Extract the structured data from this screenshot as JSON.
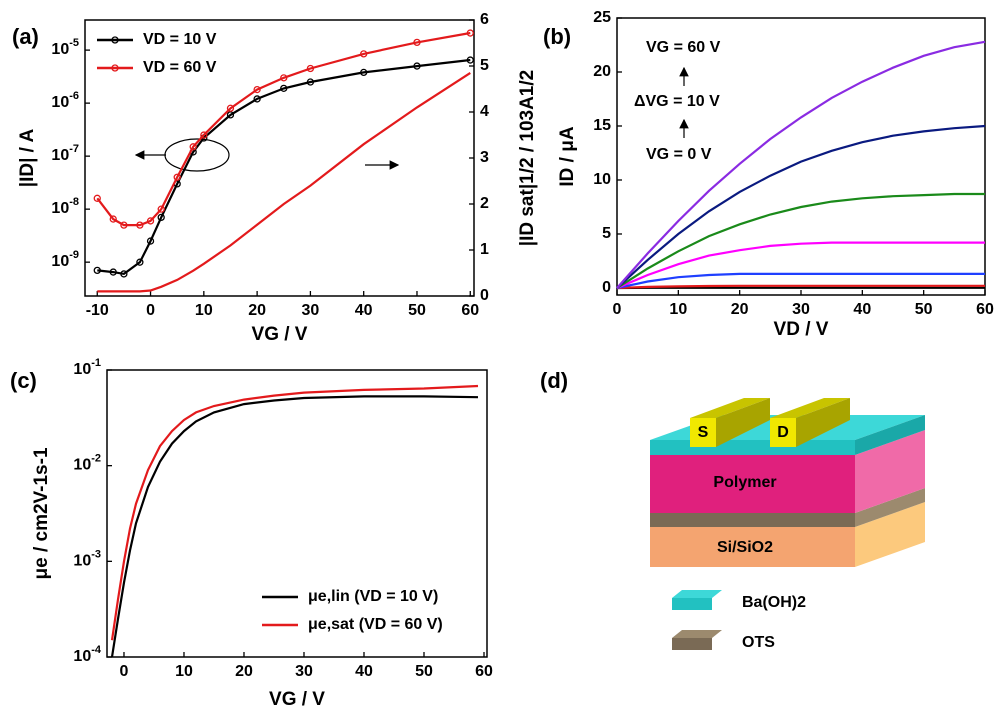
{
  "chart_data": [
    {
      "type": "line",
      "panel_label": "(a)",
      "xlabel": "VG / V",
      "ylabel": "|ID| / A",
      "y2label": "|ID sat|1/2 / 103A1/2",
      "ylog": true,
      "markers": true,
      "legend": "upper left",
      "xlim": [
        -12.3,
        60.7
      ],
      "xticks": [
        -10,
        0,
        10,
        20,
        30,
        40,
        50,
        60
      ],
      "ylim": [
        2.3e-10,
        3.7e-05
      ],
      "yticks": [
        {
          "value": 1e-09,
          "label": "10-9"
        },
        {
          "value": 1e-08,
          "label": "10-8"
        },
        {
          "value": 1e-07,
          "label": "10-7"
        },
        {
          "value": 1e-06,
          "label": "10-6"
        },
        {
          "value": 1e-05,
          "label": "10-5"
        }
      ],
      "y2lim": [
        0,
        6
      ],
      "y2ticks": [
        0,
        1,
        2,
        3,
        4,
        5,
        6
      ],
      "x": [
        -10,
        -7,
        -5,
        -2,
        0,
        2,
        5,
        8,
        10,
        15,
        20,
        25,
        30,
        40,
        50,
        60
      ],
      "series": [
        {
          "name": "VD = 10 V",
          "color": "#000000",
          "values": [
            7e-10,
            6.5e-10,
            6e-10,
            1e-09,
            2.5e-09,
            7e-09,
            3e-08,
            1.2e-07,
            2.2e-07,
            6e-07,
            1.2e-06,
            1.9e-06,
            2.5e-06,
            3.8e-06,
            5e-06,
            6.5e-06
          ]
        },
        {
          "name": "VD = 60 V",
          "color": "#e31a1c",
          "values": [
            1.6e-08,
            6.5e-09,
            5e-09,
            5e-09,
            6e-09,
            1e-08,
            4e-08,
            1.5e-07,
            2.5e-07,
            8e-07,
            1.8e-06,
            3e-06,
            4.5e-06,
            8.5e-06,
            1.4e-05,
            2.1e-05
          ]
        },
        {
          "color": "#e31a1c",
          "axis": "y2",
          "values": [
            0.1,
            0.1,
            0.1,
            0.1,
            0.12,
            0.2,
            0.35,
            0.55,
            0.7,
            1.1,
            1.55,
            2.0,
            2.4,
            3.3,
            4.1,
            4.85
          ]
        }
      ]
    },
    {
      "type": "line",
      "panel_label": "(b)",
      "xlabel": "VD / V",
      "ylabel": "ID / μA",
      "xlim": [
        0,
        60
      ],
      "xticks": [
        0,
        10,
        20,
        30,
        40,
        50,
        60
      ],
      "ylim": [
        -0.65,
        25
      ],
      "yticks": [
        0,
        5,
        10,
        15,
        20,
        25
      ],
      "annotations": [
        "VG = 60 V",
        "ΔVG = 10 V",
        "VG = 0 V"
      ],
      "x": [
        0,
        5,
        10,
        15,
        20,
        25,
        30,
        35,
        40,
        45,
        50,
        55,
        60
      ],
      "series": [
        {
          "color": "#000000",
          "values": [
            0,
            0.02,
            0.02,
            0.02,
            0.02,
            0.02,
            0.02,
            0.02,
            0.02,
            0.02,
            0.02,
            0.02,
            0.02
          ]
        },
        {
          "color": "#e31a1c",
          "values": [
            0,
            0.1,
            0.15,
            0.18,
            0.2,
            0.2,
            0.2,
            0.2,
            0.2,
            0.2,
            0.2,
            0.2,
            0.2
          ]
        },
        {
          "color": "#1f3fff",
          "values": [
            0,
            0.6,
            1.0,
            1.2,
            1.3,
            1.3,
            1.3,
            1.3,
            1.3,
            1.3,
            1.3,
            1.3,
            1.3
          ]
        },
        {
          "color": "#ff00ff",
          "values": [
            0,
            1.2,
            2.2,
            3.0,
            3.5,
            3.9,
            4.1,
            4.2,
            4.2,
            4.2,
            4.2,
            4.2,
            4.2
          ]
        },
        {
          "color": "#1a8a1a",
          "values": [
            0,
            1.8,
            3.4,
            4.8,
            5.9,
            6.8,
            7.5,
            8.0,
            8.3,
            8.5,
            8.6,
            8.7,
            8.7
          ]
        },
        {
          "color": "#0a1a80",
          "values": [
            0,
            2.6,
            5.0,
            7.1,
            8.9,
            10.4,
            11.7,
            12.7,
            13.5,
            14.1,
            14.5,
            14.8,
            15.0
          ]
        },
        {
          "color": "#8a2be2",
          "values": [
            0,
            3.2,
            6.2,
            9.0,
            11.5,
            13.8,
            15.8,
            17.6,
            19.1,
            20.4,
            21.5,
            22.3,
            22.8
          ]
        }
      ]
    },
    {
      "type": "line",
      "panel_label": "(c)",
      "xlabel": "VG / V",
      "ylabel": "μe / cm2V-1s-1",
      "ylog": true,
      "legend": "lower right",
      "xlim": [
        -2.83,
        60.5
      ],
      "xticks": [
        0,
        10,
        20,
        30,
        40,
        50,
        60
      ],
      "ylim": [
        0.0001,
        0.1
      ],
      "yticks": [
        {
          "value": 0.0001,
          "label": "10-4"
        },
        {
          "value": 0.001,
          "label": "10-3"
        },
        {
          "value": 0.01,
          "label": "10-2"
        },
        {
          "value": 0.1,
          "label": "10-1"
        }
      ],
      "x": [
        -2,
        -1,
        0,
        1,
        2,
        4,
        6,
        8,
        10,
        12,
        15,
        20,
        25,
        30,
        40,
        50,
        59
      ],
      "series": [
        {
          "name": "μe,lin (VD = 10 V)",
          "color": "#000000",
          "values": [
            0.0001,
            0.00025,
            0.0006,
            0.0013,
            0.0025,
            0.006,
            0.011,
            0.017,
            0.023,
            0.029,
            0.036,
            0.044,
            0.048,
            0.051,
            0.053,
            0.053,
            0.052
          ]
        },
        {
          "name": "μe,sat (VD = 60 V)",
          "color": "#e31a1c",
          "values": [
            0.00015,
            0.0004,
            0.001,
            0.0022,
            0.004,
            0.009,
            0.016,
            0.023,
            0.03,
            0.036,
            0.042,
            0.049,
            0.054,
            0.058,
            0.062,
            0.064,
            0.068
          ]
        }
      ]
    }
  ],
  "diagram": {
    "panel_label": "(d)",
    "source": "S",
    "drain": "D",
    "layer_polymer": "Polymer",
    "layer_substrate": "Si/SiO2",
    "legend": [
      "Ba(OH)2",
      "OTS"
    ]
  }
}
